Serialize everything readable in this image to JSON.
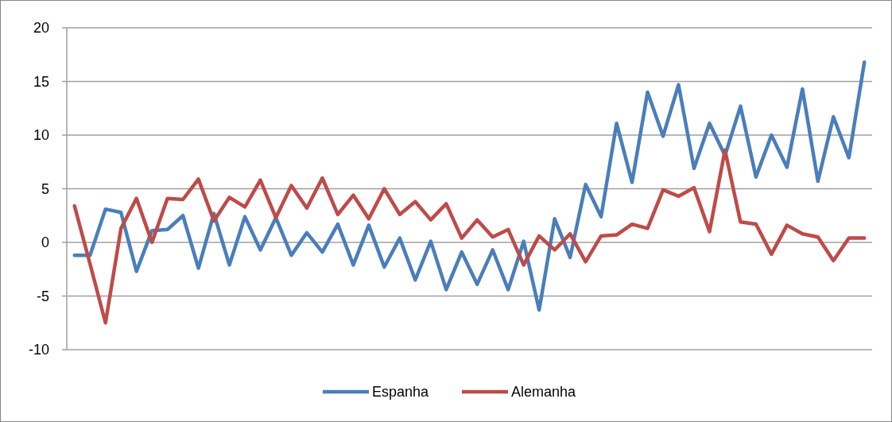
{
  "chart_data": {
    "type": "line",
    "categories": [
      null,
      null,
      null,
      null,
      null,
      null,
      null,
      null,
      null,
      null,
      null,
      null,
      null,
      null,
      null,
      null,
      null,
      null,
      null,
      null,
      null,
      null,
      null,
      null,
      null,
      null,
      null,
      null,
      null,
      null,
      null,
      null,
      null,
      null,
      null,
      null,
      null,
      null,
      null,
      null,
      null,
      null,
      null,
      null,
      null,
      null,
      null,
      null,
      null,
      null,
      null,
      null
    ],
    "series": [
      {
        "name": "Espanha",
        "color": "#4a7ebb",
        "values": [
          -1.2,
          -1.2,
          3.1,
          2.8,
          -2.7,
          1.1,
          1.2,
          2.5,
          -2.4,
          2.7,
          -2.1,
          2.4,
          -0.7,
          2.3,
          -1.2,
          0.9,
          -0.9,
          1.7,
          -2.1,
          1.6,
          -2.3,
          0.4,
          -3.5,
          0.1,
          -4.4,
          -0.9,
          -3.9,
          -0.7,
          -4.4,
          0.1,
          -6.3,
          2.2,
          -1.4,
          5.4,
          2.4,
          11.1,
          5.6,
          14.0,
          9.9,
          14.7,
          6.9,
          11.1,
          8.1,
          12.7,
          6.1,
          10.0,
          7.0,
          14.3,
          5.7,
          11.7,
          7.9,
          16.8
        ]
      },
      {
        "name": "Alemanha",
        "color": "#be4b48",
        "values": [
          3.4,
          -2.0,
          -7.5,
          1.3,
          4.1,
          0.0,
          4.1,
          4.0,
          5.9,
          2.0,
          4.2,
          3.3,
          5.8,
          2.3,
          5.3,
          3.2,
          6.0,
          2.6,
          4.4,
          2.2,
          5.0,
          2.6,
          3.8,
          2.1,
          3.6,
          0.4,
          2.1,
          0.5,
          1.2,
          -2.1,
          0.6,
          -0.7,
          0.8,
          -1.8,
          0.6,
          0.7,
          1.7,
          1.3,
          4.9,
          4.3,
          5.1,
          1.0,
          8.6,
          1.9,
          1.7,
          -1.1,
          1.6,
          0.8,
          0.5,
          -1.7,
          0.4,
          0.4
        ]
      }
    ],
    "ylim": [
      -10,
      20
    ],
    "yticks": [
      -10,
      -5,
      0,
      5,
      10,
      15,
      20
    ],
    "grid": "y",
    "legend": "bottom",
    "tick_labels": "y",
    "marker": "none",
    "line_style": "solid"
  }
}
